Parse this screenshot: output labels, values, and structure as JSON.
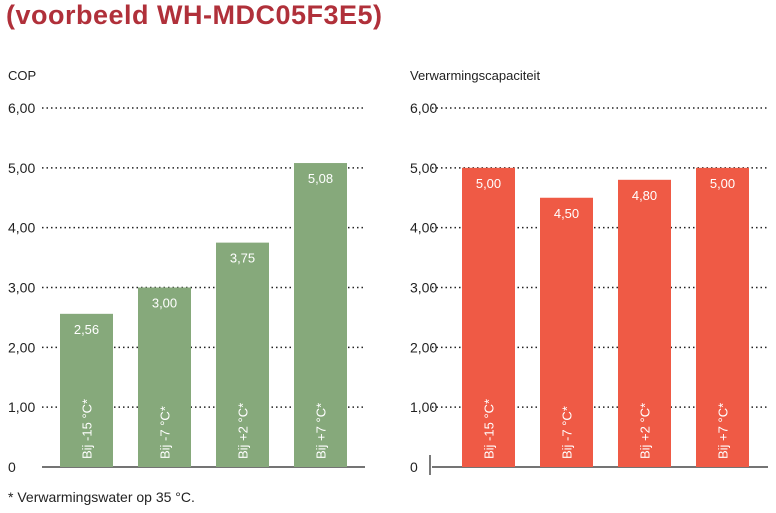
{
  "page_title": "(voorbeeld WH-MDC05F3E5)",
  "footnote": "* Verwarmingswater op 35 °C.",
  "chart_data": [
    {
      "type": "bar",
      "title": "COP",
      "categories": [
        "Bij -15 °C*",
        "Bij -7 °C*",
        "Bij +2 °C*",
        "Bij +7 °C*"
      ],
      "values": [
        2.56,
        3.0,
        3.75,
        5.08
      ],
      "value_labels": [
        "2,56",
        "3,00",
        "3,75",
        "5,08"
      ],
      "ylim": [
        0,
        6
      ],
      "yticks": [
        0,
        1,
        2,
        3,
        4,
        5,
        6
      ],
      "ytick_labels": [
        "0",
        "1,00",
        "2,00",
        "3,00",
        "4,00",
        "5,00",
        "6,00"
      ],
      "grid": "dotted horizontal",
      "color": "#86a97b"
    },
    {
      "type": "bar",
      "title": "Verwarmingscapaciteit",
      "categories": [
        "Bij -15 °C*",
        "Bij -7 °C*",
        "Bij +2 °C*",
        "Bij +7 °C*"
      ],
      "values": [
        5.0,
        4.5,
        4.8,
        5.0
      ],
      "value_labels": [
        "5,00",
        "4,50",
        "4,80",
        "5,00"
      ],
      "ylim": [
        0,
        6
      ],
      "yticks": [
        0,
        1,
        2,
        3,
        4,
        5,
        6
      ],
      "ytick_labels": [
        "0",
        "1,00",
        "2,00",
        "3,00",
        "4,00",
        "5,00",
        "6,00"
      ],
      "grid": "dotted horizontal",
      "color": "#ef5a45"
    }
  ]
}
